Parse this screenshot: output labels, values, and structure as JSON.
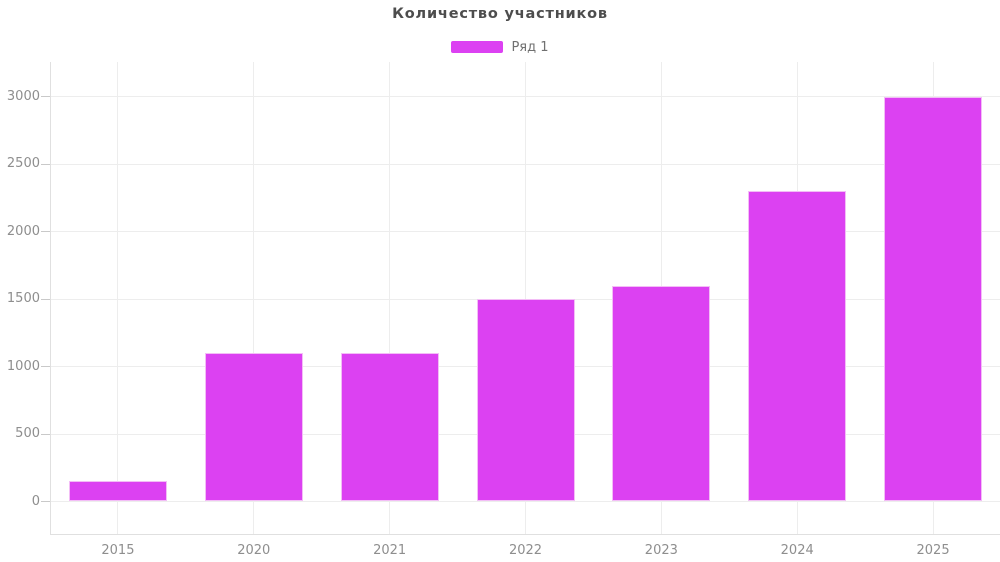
{
  "colors": {
    "bar": "#dc41f2",
    "bar_border": "#f3bdf6",
    "grid_line": "#ededed",
    "axis_line": "#e0e0e0",
    "tick_mark": "#c9c9c9",
    "axis_label": "#8e8e8e",
    "title_text": "#4d4d4d",
    "legend_text": "#707070"
  },
  "chart_data": {
    "type": "bar",
    "title": "Количество участников",
    "categories": [
      "2015",
      "2020",
      "2021",
      "2022",
      "2023",
      "2024",
      "2025"
    ],
    "series": [
      {
        "name": "Ряд 1",
        "color": "#dc41f2",
        "values": [
          150,
          1100,
          1100,
          1500,
          1600,
          2300,
          3000
        ]
      }
    ],
    "xlabel": "",
    "ylabel": "",
    "ylim": [
      0,
      3000
    ],
    "yticks": [
      0,
      500,
      1000,
      1500,
      2000,
      2500,
      3000
    ],
    "grid": true,
    "legend_position": "top-center"
  }
}
